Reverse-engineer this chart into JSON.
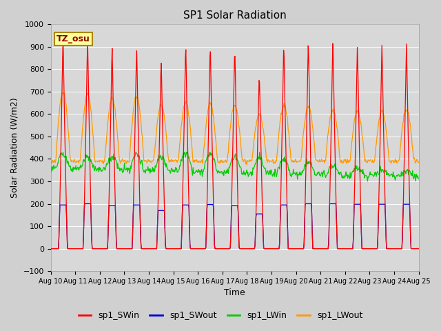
{
  "title": "SP1 Solar Radiation",
  "xlabel": "Time",
  "ylabel": "Solar Radiation (W/m2)",
  "ylim": [
    -100,
    1000
  ],
  "x_tick_labels": [
    "Aug 10",
    "Aug 11",
    "Aug 12",
    "Aug 13",
    "Aug 14",
    "Aug 15",
    "Aug 16",
    "Aug 17",
    "Aug 18",
    "Aug 19",
    "Aug 20",
    "Aug 21",
    "Aug 22",
    "Aug 23",
    "Aug 24",
    "Aug 25"
  ],
  "fig_bg_color": "#d0d0d0",
  "plot_bg_color": "#d8d8d8",
  "grid_color": "#ffffff",
  "tz_label": "TZ_osu",
  "tz_bg": "#ffff99",
  "tz_border": "#aa8800",
  "legend_entries": [
    "sp1_SWin",
    "sp1_SWout",
    "sp1_LWin",
    "sp1_LWout"
  ],
  "legend_colors": [
    "#ff0000",
    "#0000dd",
    "#00cc00",
    "#ff9900"
  ],
  "days": 15,
  "SWin_peaks": [
    960,
    950,
    915,
    915,
    865,
    930,
    930,
    920,
    800,
    930,
    945,
    948,
    920,
    920,
    920
  ],
  "SWout_peaks": [
    195,
    200,
    193,
    195,
    170,
    195,
    197,
    192,
    155,
    195,
    200,
    200,
    198,
    198,
    198
  ],
  "LWout_night": 390,
  "LWout_day_peaks": [
    700,
    690,
    670,
    680,
    640,
    650,
    645,
    645,
    600,
    640,
    635,
    620,
    615,
    615,
    620
  ],
  "LWin_base": 360,
  "LWin_day_peaks": [
    420,
    415,
    410,
    420,
    415,
    430,
    430,
    410,
    405,
    400,
    385,
    370,
    360,
    350,
    345
  ]
}
